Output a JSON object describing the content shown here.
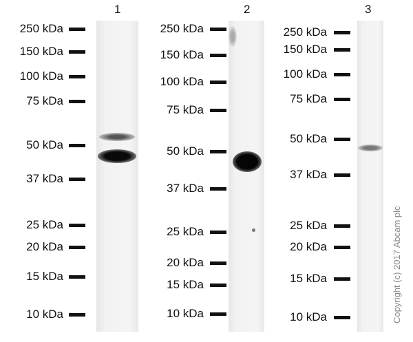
{
  "lanes": [
    {
      "number": "1",
      "markers": [
        "250 kDa",
        "150 kDa",
        "100 kDa",
        "75 kDa",
        "50 kDa",
        "37 kDa",
        "25 kDa",
        "20 kDa",
        "15 kDa",
        "10 kDa"
      ]
    },
    {
      "number": "2",
      "markers": [
        "250 kDa",
        "150 kDa",
        "100 kDa",
        "75 kDa",
        "50 kDa",
        "37 kDa",
        "25 kDa",
        "20 kDa",
        "15 kDa",
        "10 kDa"
      ]
    },
    {
      "number": "3",
      "markers": [
        "250 kDa",
        "150 kDa",
        "100 kDa",
        "75 kDa",
        "50 kDa",
        "37 kDa",
        "25 kDa",
        "20 kDa",
        "15 kDa",
        "10 kDa"
      ]
    }
  ],
  "copyright": "Copyright (c) 2017 Abcam plc",
  "colors": {
    "band": "#111111",
    "lane_background": "#efefef",
    "marker": "#111111"
  }
}
